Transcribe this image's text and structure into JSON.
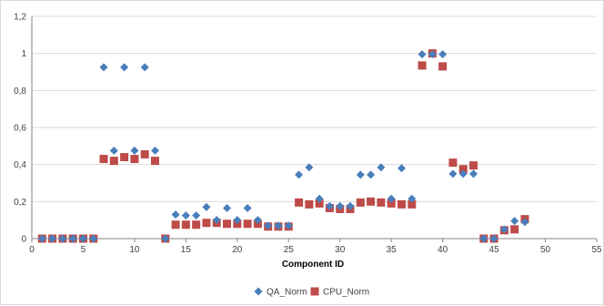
{
  "chart_data": {
    "type": "scatter",
    "xlabel": "Component ID",
    "ylabel": "",
    "xlim": [
      0,
      55
    ],
    "ylim": [
      0,
      1.2
    ],
    "x_ticks": [
      "0",
      "5",
      "10",
      "15",
      "20",
      "25",
      "30",
      "35",
      "40",
      "45",
      "50",
      "55"
    ],
    "y_ticks": [
      "0",
      "0,2",
      "0,4",
      "0,6",
      "0,8",
      "1",
      "1,2"
    ],
    "grid": "horizontal",
    "legend_position": "bottom",
    "series": [
      {
        "name": "QA_Norm",
        "color": "#4a7ebb",
        "marker": "diamond",
        "points": [
          [
            1,
            0
          ],
          [
            2,
            0
          ],
          [
            3,
            0
          ],
          [
            4,
            0
          ],
          [
            5,
            0
          ],
          [
            6,
            0
          ],
          [
            7,
            0.925
          ],
          [
            8,
            0.475
          ],
          [
            9,
            0.925
          ],
          [
            10,
            0.475
          ],
          [
            11,
            0.925
          ],
          [
            12,
            0.475
          ],
          [
            13,
            0
          ],
          [
            14,
            0.13
          ],
          [
            15,
            0.125
          ],
          [
            16,
            0.125
          ],
          [
            17,
            0.17
          ],
          [
            18,
            0.1
          ],
          [
            19,
            0.165
          ],
          [
            20,
            0.1
          ],
          [
            21,
            0.165
          ],
          [
            22,
            0.1
          ],
          [
            23,
            0.07
          ],
          [
            24,
            0.07
          ],
          [
            25,
            0.07
          ],
          [
            26,
            0.345
          ],
          [
            27,
            0.385
          ],
          [
            28,
            0.215
          ],
          [
            29,
            0.175
          ],
          [
            30,
            0.175
          ],
          [
            31,
            0.175
          ],
          [
            32,
            0.345
          ],
          [
            33,
            0.345
          ],
          [
            34,
            0.385
          ],
          [
            35,
            0.215
          ],
          [
            36,
            0.38
          ],
          [
            37,
            0.215
          ],
          [
            38,
            0.995
          ],
          [
            39,
            0.995
          ],
          [
            40,
            0.995
          ],
          [
            41,
            0.35
          ],
          [
            42,
            0.35
          ],
          [
            43,
            0.35
          ],
          [
            44,
            0
          ],
          [
            45,
            0
          ],
          [
            46,
            0.05
          ],
          [
            47,
            0.095
          ],
          [
            48,
            0.09
          ]
        ]
      },
      {
        "name": "CPU_Norm",
        "color": "#be4b48",
        "marker": "square",
        "points": [
          [
            1,
            0
          ],
          [
            2,
            0
          ],
          [
            3,
            0
          ],
          [
            4,
            0
          ],
          [
            5,
            0
          ],
          [
            6,
            0
          ],
          [
            7,
            0.43
          ],
          [
            8,
            0.42
          ],
          [
            9,
            0.44
          ],
          [
            10,
            0.43
          ],
          [
            11,
            0.455
          ],
          [
            12,
            0.42
          ],
          [
            13,
            0
          ],
          [
            14,
            0.075
          ],
          [
            15,
            0.075
          ],
          [
            16,
            0.075
          ],
          [
            17,
            0.085
          ],
          [
            18,
            0.085
          ],
          [
            19,
            0.08
          ],
          [
            20,
            0.08
          ],
          [
            21,
            0.08
          ],
          [
            22,
            0.08
          ],
          [
            23,
            0.065
          ],
          [
            24,
            0.065
          ],
          [
            25,
            0.065
          ],
          [
            26,
            0.195
          ],
          [
            27,
            0.185
          ],
          [
            28,
            0.19
          ],
          [
            29,
            0.165
          ],
          [
            30,
            0.16
          ],
          [
            31,
            0.16
          ],
          [
            32,
            0.195
          ],
          [
            33,
            0.2
          ],
          [
            34,
            0.195
          ],
          [
            35,
            0.19
          ],
          [
            36,
            0.185
          ],
          [
            37,
            0.185
          ],
          [
            38,
            0.935
          ],
          [
            39,
            1.0
          ],
          [
            40,
            0.93
          ],
          [
            41,
            0.41
          ],
          [
            42,
            0.375
          ],
          [
            43,
            0.395
          ],
          [
            44,
            0
          ],
          [
            45,
            0
          ],
          [
            46,
            0.045
          ],
          [
            47,
            0.05
          ],
          [
            48,
            0.105
          ]
        ]
      }
    ]
  }
}
